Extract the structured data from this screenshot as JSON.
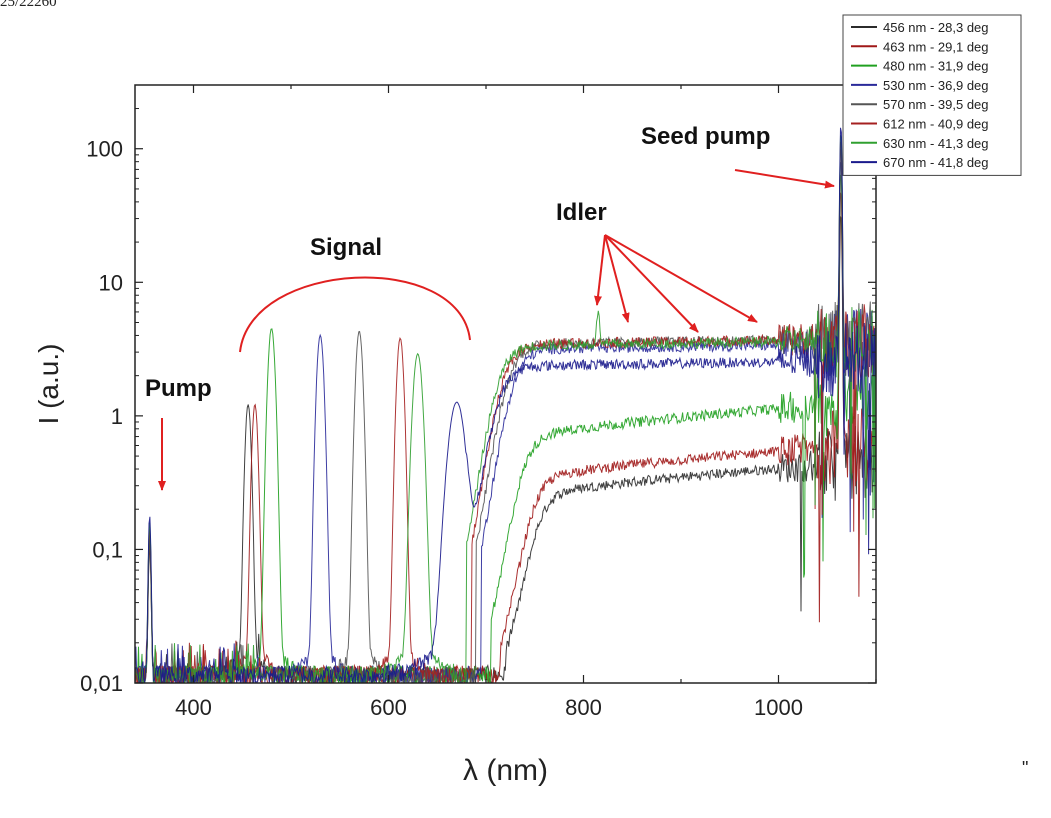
{
  "corner_text": "25/22260",
  "stray_mark": "\"",
  "chart_data": {
    "type": "line",
    "xlabel": "λ (nm)",
    "ylabel": "I (a.u.)",
    "xlim": [
      340,
      1100
    ],
    "ylim": [
      0.01,
      300
    ],
    "y_scale": "log",
    "x_ticks": [
      400,
      600,
      800,
      1000
    ],
    "x_tick_labels": [
      "400",
      "600",
      "800",
      "1000"
    ],
    "y_ticks": [
      0.01,
      0.1,
      1,
      10,
      100
    ],
    "y_tick_labels": [
      "0,01",
      "0,1",
      "1",
      "10",
      "100"
    ],
    "grid": false,
    "legend_position": "top-right",
    "pump": {
      "wavelength": 355,
      "peak": 0.17
    },
    "seed_pump": {
      "wavelength": 1064,
      "peak": 170
    },
    "series": [
      {
        "name": "456 nm - 28,3 deg",
        "color": "#2b2b2b",
        "signal_peak": 456,
        "signal_height": 1.2,
        "signal_width": 2.5,
        "plateau": 0.28,
        "onset": 730,
        "idler_peak": 0
      },
      {
        "name": "463 nm - 29,1 deg",
        "color": "#a01818",
        "signal_peak": 463,
        "signal_height": 1.2,
        "signal_width": 2.5,
        "plateau": 0.38,
        "onset": 725,
        "idler_peak": 0
      },
      {
        "name": "480 nm - 31,9 deg",
        "color": "#20a020",
        "signal_peak": 480,
        "signal_height": 4.5,
        "signal_width": 3,
        "plateau": 0.8,
        "onset": 715,
        "idler_peak": 0
      },
      {
        "name": "530 nm - 36,9 deg",
        "color": "#2a2a9a",
        "signal_peak": 530,
        "signal_height": 4.0,
        "signal_width": 3,
        "plateau": 3.2,
        "onset": 705,
        "idler_peak": 0
      },
      {
        "name": "570 nm - 39,5 deg",
        "color": "#555555",
        "signal_peak": 570,
        "signal_height": 4.3,
        "signal_width": 3,
        "plateau": 3.5,
        "onset": 700,
        "idler_peak": 0
      },
      {
        "name": "612 nm - 40,9 deg",
        "color": "#a52020",
        "signal_peak": 612,
        "signal_height": 3.8,
        "signal_width": 3,
        "plateau": 3.5,
        "onset": 695,
        "idler_peak": 0
      },
      {
        "name": "630 nm - 41,3 deg",
        "color": "#30a030",
        "signal_peak": 630,
        "signal_height": 2.9,
        "signal_width": 4,
        "plateau": 3.4,
        "onset": 690,
        "idler_peak": 815
      },
      {
        "name": "670 nm - 41,8 deg",
        "color": "#1a1a8c",
        "signal_peak": 670,
        "signal_height": 1.25,
        "signal_width": 7,
        "plateau": 2.4,
        "onset": 690,
        "idler_peak": 0
      }
    ],
    "annotations": [
      {
        "text": "Pump",
        "points_to": {
          "x": 360,
          "y": 0.2
        }
      },
      {
        "text": "Signal"
      },
      {
        "text": "Idler",
        "points_to": [
          {
            "x": 815,
            "y": 7
          },
          {
            "x": 845,
            "y": 5
          },
          {
            "x": 920,
            "y": 4.2
          },
          {
            "x": 980,
            "y": 4.2
          }
        ]
      },
      {
        "text": "Seed pump",
        "points_to": {
          "x": 1060,
          "y": 130
        }
      }
    ]
  }
}
